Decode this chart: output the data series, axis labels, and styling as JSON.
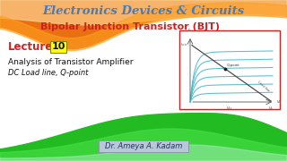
{
  "title": "Electronics Devices & Circuits",
  "subtitle": "Bipolar Junction Transistor (BJT)",
  "lecture_label": "Lecture",
  "lecture_num": "10",
  "line1": "Analysis of Transistor Amplifier",
  "line2": "DC Load line, Q-point",
  "author": "Dr. Ameya A. Kadam",
  "bg_color": "#ffffff",
  "title_color": "#4a7ab5",
  "subtitle_color": "#cc2222",
  "lecture_color": "#cc2222",
  "num_box_color": "#ffff00",
  "num_box_border": "#888800",
  "text_color": "#111111",
  "author_box_bg": "#b8c8d8",
  "author_box_border": "#8899aa",
  "author_text_color": "#223366",
  "wave_orange1": "#f5a030",
  "wave_orange2": "#e87010",
  "wave_orange3": "#fcd090",
  "wave_green1": "#22bb22",
  "wave_green2": "#44dd44",
  "wave_green3": "#aaeebb",
  "graph_border": "#cc2222",
  "graph_bg": "#ffffff",
  "graph_line_color": "#44b8cc",
  "load_line_color": "#444444",
  "axes_color": "#555555"
}
